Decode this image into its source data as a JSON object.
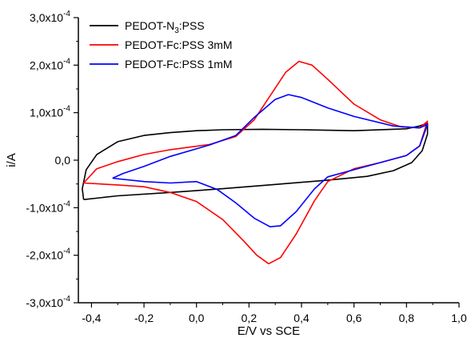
{
  "chart_data": {
    "type": "line",
    "title": "",
    "xlabel": "E/V vs SCE",
    "ylabel": "i/A",
    "xlim": [
      -0.45,
      1.0
    ],
    "ylim": [
      -0.0003,
      0.0003
    ],
    "grid": false,
    "legend_position": "top-left",
    "x_ticks": [
      {
        "value": -0.4,
        "label": "-0,4"
      },
      {
        "value": -0.2,
        "label": "-0,2"
      },
      {
        "value": 0.0,
        "label": "0,0"
      },
      {
        "value": 0.2,
        "label": "0,2"
      },
      {
        "value": 0.4,
        "label": "0,4"
      },
      {
        "value": 0.6,
        "label": "0,6"
      },
      {
        "value": 0.8,
        "label": "0,8"
      },
      {
        "value": 1.0,
        "label": "1,0"
      }
    ],
    "y_ticks": [
      {
        "value": -0.0003,
        "mantissa": "-3,0x10",
        "exp": "-4"
      },
      {
        "value": -0.0002,
        "mantissa": "-2,0x10",
        "exp": "-4"
      },
      {
        "value": -0.0001,
        "mantissa": "-1,0x10",
        "exp": "-4"
      },
      {
        "value": 0.0,
        "mantissa": "0,0",
        "exp": ""
      },
      {
        "value": 0.0001,
        "mantissa": "1,0x10",
        "exp": "-4"
      },
      {
        "value": 0.0002,
        "mantissa": "2,0x10",
        "exp": "-4"
      },
      {
        "value": 0.0003,
        "mantissa": "3,0x10",
        "exp": "-4"
      }
    ],
    "series": [
      {
        "name_parts": [
          "PEDOT-N",
          "3",
          ":PSS"
        ],
        "color": "#000000",
        "points": [
          [
            -0.43,
            -8.3e-05
          ],
          [
            -0.3,
            -7.5e-05
          ],
          [
            -0.1,
            -6.8e-05
          ],
          [
            0.1,
            -6e-05
          ],
          [
            0.3,
            -5.1e-05
          ],
          [
            0.5,
            -4.2e-05
          ],
          [
            0.65,
            -3.4e-05
          ],
          [
            0.75,
            -2.2e-05
          ],
          [
            0.82,
            -5e-06
          ],
          [
            0.86,
            2e-05
          ],
          [
            0.88,
            5.5e-05
          ],
          [
            0.88,
            7.8e-05
          ],
          [
            0.85,
            7.2e-05
          ],
          [
            0.8,
            6.6e-05
          ],
          [
            0.6,
            6.2e-05
          ],
          [
            0.4,
            6.4e-05
          ],
          [
            0.25,
            6.5e-05
          ],
          [
            0.1,
            6.4e-05
          ],
          [
            0.0,
            6.2e-05
          ],
          [
            -0.1,
            5.8e-05
          ],
          [
            -0.2,
            5.2e-05
          ],
          [
            -0.3,
            3.9e-05
          ],
          [
            -0.38,
            1.2e-05
          ],
          [
            -0.42,
            -2e-05
          ],
          [
            -0.435,
            -6e-05
          ],
          [
            -0.43,
            -8.3e-05
          ]
        ]
      },
      {
        "name_parts": [
          "PEDOT-Fc:PSS 3mM",
          "",
          ""
        ],
        "color": "#ff0000",
        "points": [
          [
            -0.43,
            -4.8e-05
          ],
          [
            -0.3,
            -5.2e-05
          ],
          [
            -0.2,
            -5.6e-05
          ],
          [
            -0.1,
            -6.8e-05
          ],
          [
            0.0,
            -8.7e-05
          ],
          [
            0.1,
            -0.000125
          ],
          [
            0.18,
            -0.00017
          ],
          [
            0.23,
            -0.0002
          ],
          [
            0.275,
            -0.000218
          ],
          [
            0.32,
            -0.000205
          ],
          [
            0.38,
            -0.000155
          ],
          [
            0.45,
            -8.5e-05
          ],
          [
            0.5,
            -4.5e-05
          ],
          [
            0.6,
            -1.8e-05
          ],
          [
            0.7,
            -5e-06
          ],
          [
            0.8,
            1e-05
          ],
          [
            0.85,
            3e-05
          ],
          [
            0.88,
            8.2e-05
          ],
          [
            0.85,
            6.8e-05
          ],
          [
            0.78,
            7e-05
          ],
          [
            0.7,
            8.5e-05
          ],
          [
            0.6,
            0.000118
          ],
          [
            0.5,
            0.00017
          ],
          [
            0.44,
            0.0002
          ],
          [
            0.39,
            0.000208
          ],
          [
            0.34,
            0.000185
          ],
          [
            0.28,
            0.000135
          ],
          [
            0.22,
            8.5e-05
          ],
          [
            0.15,
            5e-05
          ],
          [
            0.05,
            3.3e-05
          ],
          [
            -0.1,
            2.2e-05
          ],
          [
            -0.2,
            1.2e-05
          ],
          [
            -0.3,
            -3e-06
          ],
          [
            -0.38,
            -1.8e-05
          ],
          [
            -0.43,
            -4.8e-05
          ]
        ]
      },
      {
        "name_parts": [
          "PEDOT-Fc:PSS 1mM",
          "",
          ""
        ],
        "color": "#0000ff",
        "points": [
          [
            -0.32,
            -3.8e-05
          ],
          [
            -0.2,
            -4.5e-05
          ],
          [
            -0.1,
            -4.8e-05
          ],
          [
            0.0,
            -4.5e-05
          ],
          [
            0.08,
            -6.2e-05
          ],
          [
            0.15,
            -9e-05
          ],
          [
            0.22,
            -0.000122
          ],
          [
            0.28,
            -0.00014
          ],
          [
            0.32,
            -0.000138
          ],
          [
            0.38,
            -0.000108
          ],
          [
            0.45,
            -6e-05
          ],
          [
            0.5,
            -3.5e-05
          ],
          [
            0.6,
            -2e-05
          ],
          [
            0.7,
            -5e-06
          ],
          [
            0.8,
            1e-05
          ],
          [
            0.85,
            3e-05
          ],
          [
            0.88,
            7.5e-05
          ],
          [
            0.85,
            6.8e-05
          ],
          [
            0.75,
            7.2e-05
          ],
          [
            0.6,
            9.2e-05
          ],
          [
            0.5,
            0.00011
          ],
          [
            0.4,
            0.000132
          ],
          [
            0.35,
            0.000138
          ],
          [
            0.3,
            0.000128
          ],
          [
            0.22,
            9e-05
          ],
          [
            0.15,
            5.2e-05
          ],
          [
            0.05,
            3.2e-05
          ],
          [
            -0.1,
            8e-06
          ],
          [
            -0.2,
            -1.3e-05
          ],
          [
            -0.28,
            -2.8e-05
          ],
          [
            -0.32,
            -3.8e-05
          ]
        ]
      }
    ]
  }
}
